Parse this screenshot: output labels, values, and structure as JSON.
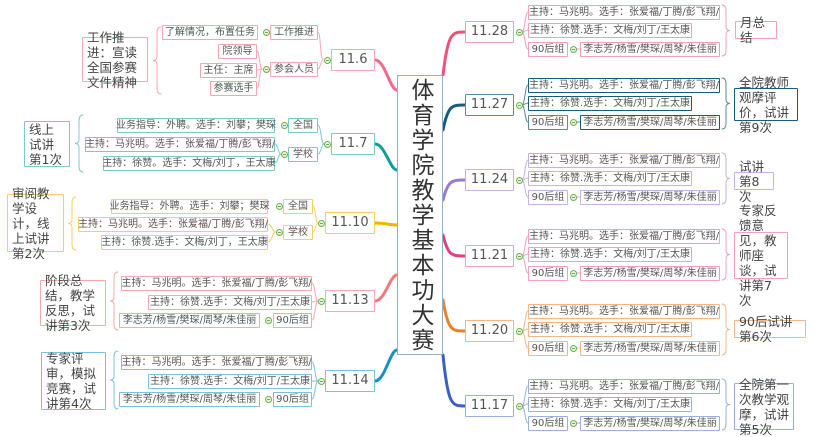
{
  "center": {
    "title": "体育学院教学基本功大赛"
  },
  "left_branches": [
    {
      "date": "11.6",
      "color": "#f06a8a",
      "light": "#f4a6b6",
      "summary": "工作推进：宣读全国参赛文件精神",
      "subtopics": [
        {
          "label": "工作推进",
          "items": [
            "了解情况，布置任务"
          ]
        },
        {
          "label": "参会人员",
          "items": [
            "院领导",
            "主任：主席",
            "参赛选手"
          ]
        }
      ]
    },
    {
      "date": "11.7",
      "color": "#139a9a",
      "light": "#7cc8cc",
      "summary": "线上试讲第1次",
      "subtopics": [
        {
          "label": "全国",
          "items": [
            "业务指导：外聘。选手：刘攀；樊琛"
          ]
        },
        {
          "label": "学校",
          "items": [
            "主持：马兆明。选手：张爱福/丁腾/彭飞翔/",
            "主持：徐赞。选手：文梅/刘丁，王太康"
          ]
        }
      ]
    },
    {
      "date": "11.10",
      "color": "#f0b400",
      "light": "#f5d060",
      "summary": "审阅教学设计，线上试讲第2次",
      "subtopics": [
        {
          "label": "全国",
          "items": [
            "业务指导：外聘。选手：刘攀；樊琛"
          ]
        },
        {
          "label": "学校",
          "items": [
            "主持：马兆明。选手：张爱福/丁腾/彭飞翔/",
            "主持：徐赞.选手：文梅/刘丁，王太康"
          ]
        }
      ]
    },
    {
      "date": "11.13",
      "color": "#f07a7a",
      "light": "#f4aaaa",
      "summary": "阶段总结，教学反思，试讲第3次",
      "rows": [
        "主持：马兆明。选手：张爱福/丁腾/彭飞翔/",
        "主持：徐赞.选手：文梅/刘丁/王太康"
      ],
      "group_label": "90后组",
      "group_members": "李志芳/杨雪/樊琛/周琴/朱佳丽"
    },
    {
      "date": "11.14",
      "color": "#1a90c0",
      "light": "#7cc0dc",
      "summary": "专家评审，模拟竞赛，试讲第4次",
      "rows": [
        "主持：马兆明。选手：张爱福/丁腾/彭飞翔/",
        "主持：徐赞.选手：文梅/刘丁/王太康"
      ],
      "group_label": "90后组",
      "group_members": "李志芳/杨雪/樊琛/周琴/朱佳丽"
    }
  ],
  "right_branches": [
    {
      "date": "11.28",
      "color": "#f0507a",
      "light": "#f4a0b4",
      "summary": "月总结",
      "rows": [
        "主持：马兆明。选手：张爱福/丁腾/彭飞翔/",
        "主持：徐赞.选手：文梅/刘丁/王太康"
      ],
      "group_label": "90后组",
      "group_members": "李志芳/杨雪/樊琛/周琴/朱佳丽"
    },
    {
      "date": "11.27",
      "color": "#1a5a7a",
      "light": "#5a8aa6",
      "summary": "全院教师观摩评价，试讲第9次",
      "rows": [
        "主持：马兆明。选手：张爱福/丁腾/彭飞翔/",
        "主持：徐赞.选手：文梅/刘丁/王太康"
      ],
      "group_label": "90后组",
      "group_members": "李志芳/杨雪/樊琛/周琴/朱佳丽"
    },
    {
      "date": "11.24",
      "color": "#9a7ad0",
      "light": "#c4b2e4",
      "summary": "试讲第8次",
      "rows": [
        "主持：马兆明。选手：张爱福/丁腾/彭飞翔/",
        "主持：徐赞.洗手：文梅/刘丁/王太康"
      ],
      "group_label": "90后组",
      "group_members": "李志芳/杨雪/樊琛/周琴/朱佳丽"
    },
    {
      "date": "11.21",
      "color": "#e0408a",
      "light": "#f0a0c4",
      "summary": "专家反馈意见，教师座谈，试讲第7次",
      "rows": [
        "主持：马兆明。选手：张爱福/丁腾/彭飞翔/",
        "主持：徐赞.选手：文梅/刘丁/王太康"
      ],
      "group_label": "90后组",
      "group_members": "李志芳/杨雪/樊琛/周琴/朱佳丽"
    },
    {
      "date": "11.20",
      "color": "#e88030",
      "light": "#f0b888",
      "summary": "90后试讲第6次",
      "rows": [
        "主持：马兆明。选手：张爱福/丁腾/彭飞翔/",
        "主持：徐赞.选手：文梅/刘丁/王太康"
      ],
      "group_label": "90后组",
      "group_members": "李志芳/杨雪/樊琛/周琴/朱佳丽"
    },
    {
      "date": "11.17",
      "color": "#3a60c0",
      "light": "#9ab0e0",
      "summary": "全院第一次教学观摩，试讲第5次",
      "rows": [
        "主持：马兆明。选手：张爱福/丁腾/彭飞翔/",
        "主持：徐赞.选手：文梅/刘丁/王太康"
      ],
      "group_label": "90后组",
      "group_members": "李志芳/杨雪/樊琛/周琴/朱佳丽"
    }
  ]
}
